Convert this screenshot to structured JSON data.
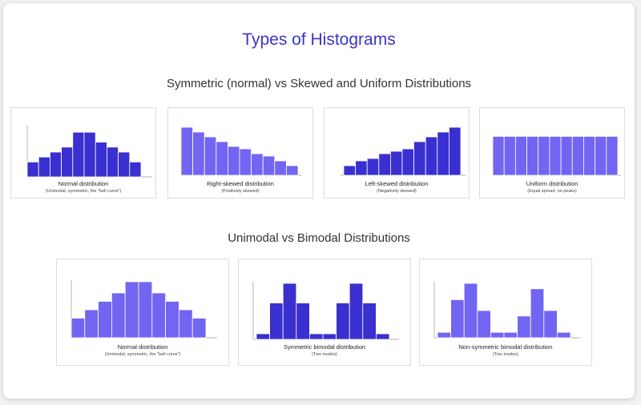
{
  "title": "Types of Histograms",
  "sections": [
    {
      "heading": "Symmetric (normal) vs Skewed and Uniform Distributions"
    },
    {
      "heading": "Unimodal vs Bimodal Distributions"
    }
  ],
  "colors": {
    "dark": "#3a2fcf",
    "light": "#7265f2",
    "title": "#3d35c8",
    "axis": "#999999"
  },
  "chart_data": [
    {
      "type": "bar",
      "title": "Normal distribution",
      "subtitle": "(Unimodal, symmetric, the \"bell curve\")",
      "color": "dark",
      "values": [
        3,
        4,
        5,
        6,
        9,
        9,
        7,
        6,
        5,
        3
      ],
      "ylim": [
        0,
        10
      ]
    },
    {
      "type": "bar",
      "title": "Right-skewed distribution",
      "subtitle": "(Positively skewed)",
      "color": "light",
      "values": [
        10,
        9,
        8,
        7,
        6,
        5.5,
        4.5,
        4,
        3,
        2
      ],
      "ylim": [
        0,
        10
      ]
    },
    {
      "type": "bar",
      "title": "Left-skewed distribution",
      "subtitle": "(Negatively skewed)",
      "color": "dark",
      "values": [
        2,
        3,
        3.5,
        4.5,
        5,
        5.5,
        7,
        8,
        9,
        10
      ],
      "ylim": [
        0,
        10
      ]
    },
    {
      "type": "bar",
      "title": "Uniform distribution",
      "subtitle": "(Equal spread, no peaks)",
      "color": "light",
      "values": [
        9,
        9,
        9,
        9,
        9,
        9,
        9,
        9,
        9,
        9,
        9
      ],
      "ylim": [
        0,
        10
      ]
    },
    {
      "type": "bar",
      "title": "Normal distribution",
      "subtitle": "(Unimodal, symmetric, the \"bell curve\")",
      "color": "light",
      "values": [
        3.5,
        5,
        6.5,
        8,
        10,
        10,
        8,
        6.5,
        5,
        3.5
      ],
      "ylim": [
        0,
        10
      ]
    },
    {
      "type": "bar",
      "title": "Symmetric bimodal distribution",
      "subtitle": "(Two modes)",
      "color": "dark",
      "values": [
        1,
        6.5,
        10,
        6.5,
        1,
        1,
        6.5,
        10,
        6.5,
        1
      ],
      "ylim": [
        0,
        10
      ]
    },
    {
      "type": "bar",
      "title": "Non-symmetric bimodal distribution",
      "subtitle": "(Two modes)",
      "color": "light",
      "values": [
        1,
        7,
        10,
        5,
        1,
        1,
        4,
        9,
        5,
        1
      ],
      "ylim": [
        0,
        10
      ]
    }
  ]
}
